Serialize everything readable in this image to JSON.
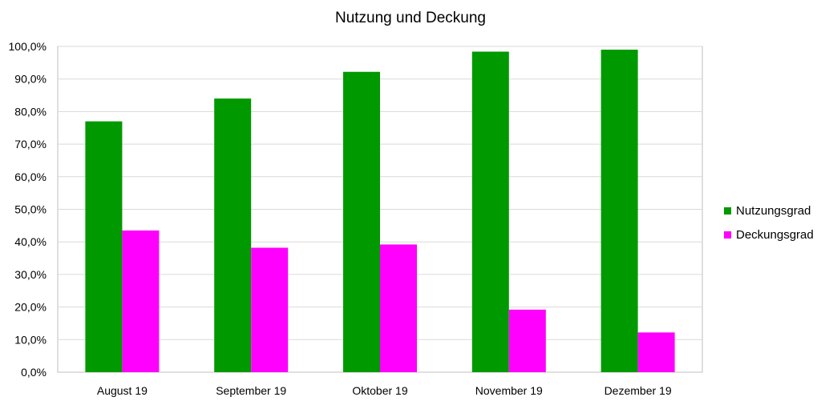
{
  "chart_data": {
    "type": "bar",
    "title": "Nutzung und Deckung",
    "categories": [
      "August 19",
      "September 19",
      "Oktober 19",
      "November 19",
      "Dezember 19"
    ],
    "series": [
      {
        "name": "Nutzungsgrad",
        "color": "#009900",
        "values": [
          77.0,
          84.0,
          92.2,
          98.4,
          99.0
        ]
      },
      {
        "name": "Deckungsgrad",
        "color": "#ff00ff",
        "values": [
          43.5,
          38.2,
          39.2,
          19.2,
          12.2
        ]
      }
    ],
    "ylim": [
      0,
      100
    ],
    "yticks": [
      "0,0%",
      "10,0%",
      "20,0%",
      "30,0%",
      "40,0%",
      "50,0%",
      "60,0%",
      "70,0%",
      "80,0%",
      "90,0%",
      "100,0%"
    ],
    "grid": true,
    "legend_position": "right"
  }
}
